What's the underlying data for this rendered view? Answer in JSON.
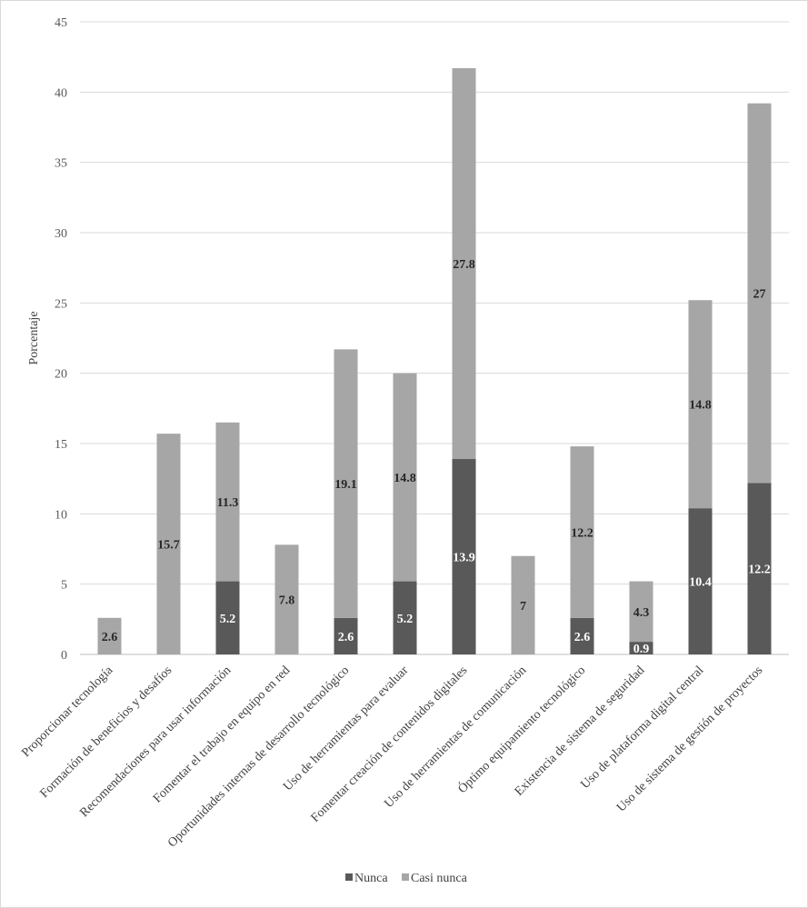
{
  "chart_data": {
    "type": "bar",
    "stacked": true,
    "title": "",
    "xlabel": "",
    "ylabel": "Porcentaje",
    "ylim": [
      0,
      45
    ],
    "yticks": [
      0,
      5,
      10,
      15,
      20,
      25,
      30,
      35,
      40,
      45
    ],
    "grid": true,
    "legend_position": "bottom",
    "categories": [
      "Proporcionar tecnología",
      "Formación de beneficios y desafíos",
      "Recomendaciones para usar información",
      "Fomentar el trabajo en equipo en red",
      "Oportunidades internas de desarrollo tecnológico",
      "Uso de herramientas para evaluar",
      "Fomentar creación de contenidos digitales",
      "Uso de herramientas de comunicación",
      "Óptimo equipamiento tecnológico",
      "Existencia de sistema de seguridad",
      "Uso de plataforma digital central",
      "Uso de sistema de gestión de proyectos"
    ],
    "series": [
      {
        "name": "Nunca",
        "color": "#595959",
        "label_color": "#ffffff",
        "values": [
          0,
          0,
          5.2,
          0,
          2.6,
          5.2,
          13.9,
          0,
          2.6,
          0.9,
          10.4,
          12.2
        ],
        "labels": [
          "",
          "",
          "5.2",
          "",
          "2.6",
          "5.2",
          "13.9",
          "",
          "2.6",
          "0.9",
          "10.4",
          "12.2"
        ]
      },
      {
        "name": "Casi nunca",
        "color": "#a6a6a6",
        "label_color": "#262626",
        "values": [
          2.6,
          15.7,
          11.3,
          7.8,
          19.1,
          14.8,
          27.8,
          7,
          12.2,
          4.3,
          14.8,
          27
        ],
        "labels": [
          "2.6",
          "15.7",
          "11.3",
          "7.8",
          "19.1",
          "14.8",
          "27.8",
          "7",
          "12.2",
          "4.3",
          "14.8",
          "27"
        ]
      }
    ]
  }
}
